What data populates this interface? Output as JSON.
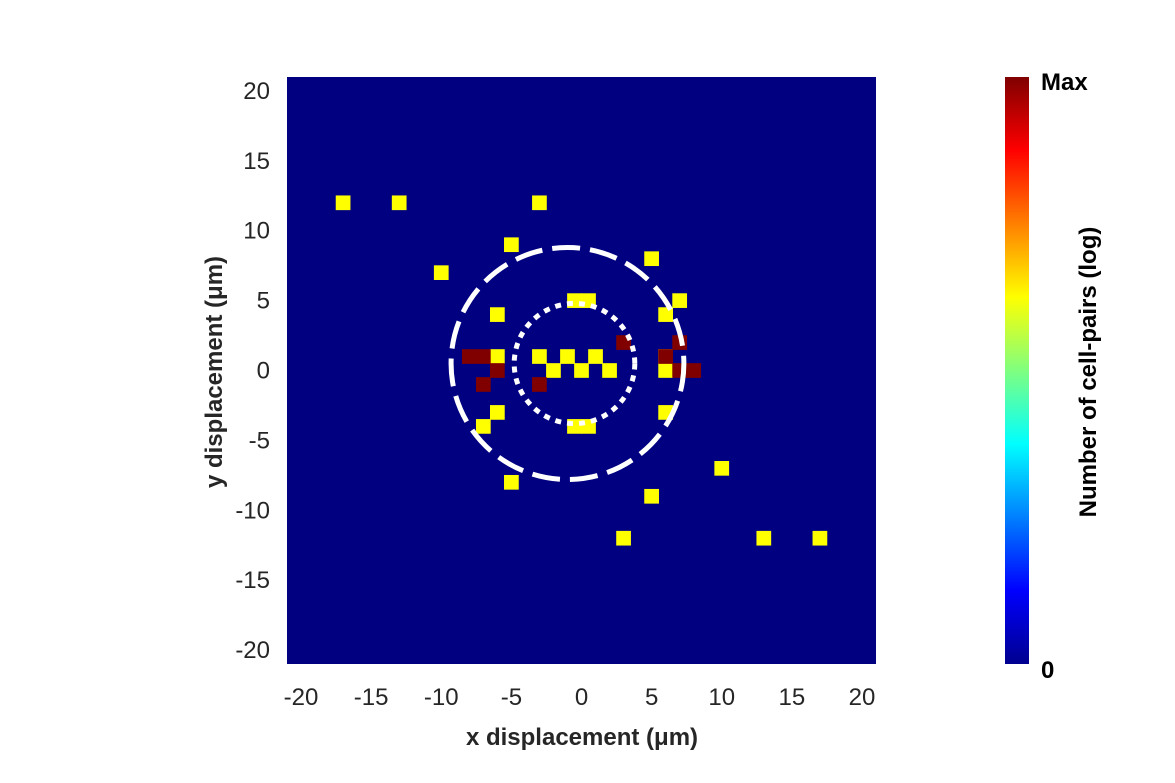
{
  "chart_data": {
    "type": "heatmap",
    "xlabel": "x displacement (μm)",
    "ylabel": "y displacement (μm)",
    "xlim": [
      -21,
      21
    ],
    "ylim": [
      -21,
      21
    ],
    "bin_size": 1.05,
    "background_color": "#000080",
    "x_ticks": [
      "-20",
      "-15",
      "-10",
      "-5",
      "0",
      "5",
      "10",
      "15",
      "20"
    ],
    "y_ticks": [
      "20",
      "15",
      "10",
      "5",
      "0",
      "-5",
      "-10",
      "-15",
      "-20"
    ],
    "x_tick_values": [
      -20,
      -15,
      -10,
      -5,
      0,
      5,
      10,
      15,
      20
    ],
    "y_tick_values": [
      20,
      15,
      10,
      5,
      0,
      -5,
      -10,
      -15,
      -20
    ],
    "cells_yellow": [
      [
        -17,
        12
      ],
      [
        -13,
        12
      ],
      [
        -3,
        12
      ],
      [
        -5,
        9
      ],
      [
        -10,
        7
      ],
      [
        5,
        8
      ],
      [
        -0.5,
        5
      ],
      [
        0.5,
        5
      ],
      [
        7,
        5
      ],
      [
        -6,
        4
      ],
      [
        6,
        4
      ],
      [
        -6,
        1
      ],
      [
        -3,
        1
      ],
      [
        -1,
        1
      ],
      [
        1,
        1
      ],
      [
        6,
        1
      ],
      [
        -2,
        0
      ],
      [
        0,
        0
      ],
      [
        2,
        0
      ],
      [
        6,
        0
      ],
      [
        -6,
        -3
      ],
      [
        6,
        -3
      ],
      [
        -7,
        -4
      ],
      [
        -0.5,
        -4
      ],
      [
        0.5,
        -4
      ],
      [
        10,
        -7
      ],
      [
        -5,
        -8
      ],
      [
        5,
        -9
      ],
      [
        3,
        -12
      ],
      [
        13,
        -12
      ],
      [
        17,
        -12
      ]
    ],
    "cells_red": [
      [
        -8,
        1
      ],
      [
        -7,
        1
      ],
      [
        3,
        2
      ],
      [
        6,
        1
      ],
      [
        7,
        2
      ],
      [
        -6,
        0
      ],
      [
        7,
        0
      ],
      [
        8,
        0
      ],
      [
        -7,
        -1
      ],
      [
        -3,
        -1
      ]
    ],
    "circles": [
      {
        "style": "dashed",
        "center": [
          -1,
          0.5
        ],
        "radius": 8.3
      },
      {
        "style": "dotted",
        "center": [
          -0.5,
          0.5
        ],
        "radius": 4.3
      }
    ],
    "colorbar": {
      "label": "Number of cell-pairs (log)",
      "max_label": "Max",
      "min_label": "0",
      "colormap": "jet",
      "stops": [
        "#00008f",
        "#0000ff",
        "#00ffff",
        "#ffff00",
        "#ff0000",
        "#800000"
      ]
    },
    "colors": {
      "yellow_bin": "#ffff00",
      "red_bin": "#800000",
      "circle": "#ffffff"
    }
  }
}
